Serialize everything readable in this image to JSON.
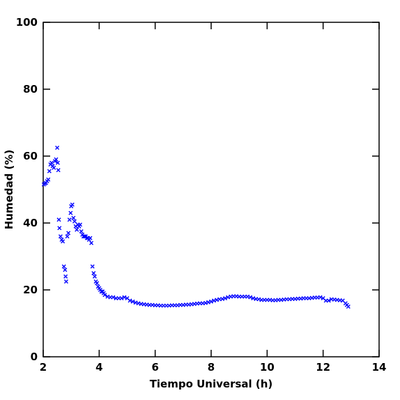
{
  "chart_data": {
    "type": "scatter",
    "xlabel": "Tiempo Universal (h)",
    "ylabel": "Humedad (%)",
    "xlim": [
      2,
      14
    ],
    "ylim": [
      0,
      100
    ],
    "xticks": [
      2,
      4,
      6,
      8,
      10,
      12,
      14
    ],
    "yticks": [
      0,
      20,
      40,
      60,
      80,
      100
    ],
    "series": [
      {
        "color": "#0000ff",
        "x": [
          2.02,
          2.06,
          2.1,
          2.14,
          2.18,
          2.22,
          2.26,
          2.3,
          2.34,
          2.38,
          2.42,
          2.46,
          2.5,
          2.52,
          2.54,
          2.56,
          2.58,
          2.62,
          2.66,
          2.7,
          2.74,
          2.78,
          2.8,
          2.82,
          2.86,
          2.9,
          2.94,
          2.98,
          3.0,
          3.04,
          3.08,
          3.12,
          3.16,
          3.2,
          3.24,
          3.28,
          3.32,
          3.36,
          3.4,
          3.44,
          3.48,
          3.52,
          3.56,
          3.6,
          3.64,
          3.68,
          3.72,
          3.76,
          3.8,
          3.84,
          3.88,
          3.92,
          3.96,
          4.0,
          4.04,
          4.08,
          4.12,
          4.16,
          4.2,
          4.3,
          4.4,
          4.5,
          4.6,
          4.7,
          4.8,
          4.9,
          5.0,
          5.1,
          5.2,
          5.3,
          5.4,
          5.5,
          5.6,
          5.7,
          5.8,
          5.9,
          6.0,
          6.1,
          6.2,
          6.3,
          6.4,
          6.5,
          6.6,
          6.7,
          6.8,
          6.9,
          7.0,
          7.1,
          7.2,
          7.3,
          7.4,
          7.5,
          7.6,
          7.7,
          7.8,
          7.9,
          8.0,
          8.1,
          8.2,
          8.3,
          8.4,
          8.5,
          8.6,
          8.7,
          8.8,
          8.9,
          9.0,
          9.1,
          9.2,
          9.3,
          9.4,
          9.5,
          9.6,
          9.7,
          9.8,
          9.9,
          10.0,
          10.1,
          10.2,
          10.3,
          10.4,
          10.5,
          10.6,
          10.7,
          10.8,
          10.9,
          11.0,
          11.1,
          11.2,
          11.3,
          11.4,
          11.5,
          11.6,
          11.7,
          11.8,
          11.9,
          12.0,
          12.1,
          12.2,
          12.3,
          12.4,
          12.5,
          12.6,
          12.7,
          12.8,
          12.85,
          12.9
        ],
        "values": [
          51.5,
          51.8,
          52,
          52.5,
          53,
          55.5,
          57.5,
          58,
          57,
          56.5,
          58.5,
          59,
          62.5,
          58,
          55.8,
          41,
          38.5,
          36,
          35,
          34.5,
          27,
          26,
          24,
          22.5,
          36,
          37,
          41,
          43,
          45,
          45.5,
          41.5,
          40.5,
          39,
          38,
          39.5,
          39,
          39.5,
          37.5,
          36.5,
          36,
          36,
          36,
          35.5,
          35.5,
          35,
          35.5,
          34,
          27,
          25,
          24,
          22.5,
          22,
          21,
          20.5,
          20,
          19.5,
          19.5,
          19,
          18.5,
          18,
          17.8,
          17.8,
          17.5,
          17.5,
          17.5,
          17.8,
          17.5,
          16.8,
          16.5,
          16.2,
          16,
          15.8,
          15.7,
          15.6,
          15.5,
          15.5,
          15.4,
          15.4,
          15.3,
          15.3,
          15.3,
          15.3,
          15.4,
          15.4,
          15.4,
          15.5,
          15.5,
          15.6,
          15.6,
          15.7,
          15.8,
          15.9,
          16,
          16,
          16.1,
          16.3,
          16.5,
          16.8,
          17,
          17.2,
          17.3,
          17.5,
          17.8,
          18,
          18.1,
          18.1,
          18,
          18,
          18,
          18,
          17.8,
          17.5,
          17.3,
          17.2,
          17,
          17,
          17,
          17,
          16.9,
          16.9,
          17,
          17,
          17.1,
          17.2,
          17.2,
          17.3,
          17.3,
          17.4,
          17.4,
          17.5,
          17.5,
          17.5,
          17.6,
          17.7,
          17.7,
          17.8,
          17.5,
          16.8,
          16.8,
          17.2,
          17.1,
          17,
          16.9,
          16.8,
          16,
          15.5,
          15
        ]
      }
    ]
  }
}
